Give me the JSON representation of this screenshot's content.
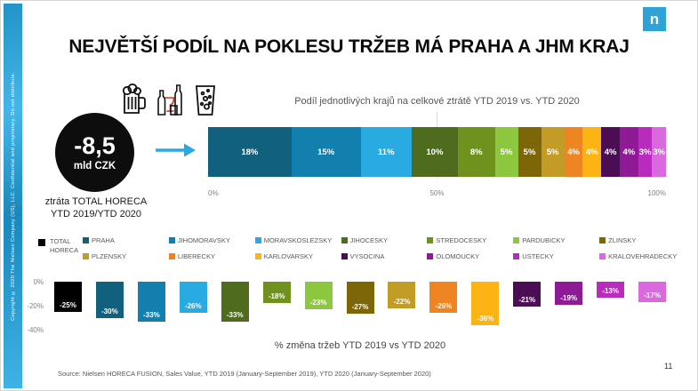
{
  "page": {
    "title": "NEJVĚTŠÍ PODÍL NA POKLESU TRŽEB MÁ PRAHA A JHM KRAJ",
    "logo_letter": "n",
    "page_number": "11",
    "copyright": "Copyright © 2020 The Nielsen Company (US), LLC. Confidential and proprietary. Do not distribute.",
    "source": "Source: Nielsen HORECA FUSION, Sales Value, YTD 2019 (January-September 2019), YTD 2020 (January-September 2020)"
  },
  "kpi": {
    "value": "-8,5",
    "unit": "mld CZK",
    "caption_line1": "ztráta TOTAL HORECA",
    "caption_line2": "YTD 2019/YTD 2020",
    "icons": [
      "beer-mug-icon",
      "wine-bottle-glass-icon",
      "sparkling-drink-icon"
    ]
  },
  "colors": {
    "accent": "#29abe2",
    "total": "#000000",
    "praha": "#11607d",
    "jihomoravsky": "#1180ae",
    "moravskoslezsky": "#29abe2",
    "jihocesky": "#4e6b1e",
    "stredocesky": "#6f921e",
    "pardubicky": "#8dc63f",
    "zlinsky": "#7c6608",
    "plzensky": "#c39b27",
    "liberecky": "#ef8522",
    "karlovarsky": "#fbb414",
    "vysocina": "#4b0e55",
    "olomoucky": "#8e1a96",
    "ustecky": "#b92bbd",
    "kralovehradecky": "#da68de"
  },
  "chart_data": [
    {
      "type": "bar",
      "subtype": "horizontal-stacked-100",
      "title": "Podíl jednotlivých krajů na celkové ztrátě YTD 2019 vs. YTD 2020",
      "axis_ticks": [
        "0%",
        "50%",
        "100%"
      ],
      "xlim": [
        0,
        100
      ],
      "grid": "vertical-50-only",
      "segments": [
        {
          "name": "PRAHA",
          "value": 18,
          "label": "18%",
          "color": "#11607d"
        },
        {
          "name": "JIHOMORAVSKY",
          "value": 15,
          "label": "15%",
          "color": "#1180ae"
        },
        {
          "name": "MORAVSKOSLEZSKY",
          "value": 11,
          "label": "11%",
          "color": "#29abe2"
        },
        {
          "name": "JIHOCESKY",
          "value": 10,
          "label": "10%",
          "color": "#4e6b1e"
        },
        {
          "name": "STREDOCESKY",
          "value": 8,
          "label": "8%",
          "color": "#6f921e"
        },
        {
          "name": "PARDUBICKY",
          "value": 5,
          "label": "5%",
          "color": "#8dc63f"
        },
        {
          "name": "ZLINSKY",
          "value": 5,
          "label": "5%",
          "color": "#7c6608"
        },
        {
          "name": "PLZENSKY",
          "value": 5,
          "label": "5%",
          "color": "#c39b27"
        },
        {
          "name": "LIBERECKY",
          "value": 4,
          "label": "4%",
          "color": "#ef8522"
        },
        {
          "name": "KARLOVARSKY",
          "value": 4,
          "label": "4%",
          "color": "#fbb414"
        },
        {
          "name": "VYSOCINA",
          "value": 4,
          "label": "4%",
          "color": "#4b0e55"
        },
        {
          "name": "OLOMOUCKY",
          "value": 4,
          "label": "4%",
          "color": "#8e1a96"
        },
        {
          "name": "USTECKY",
          "value": 3,
          "label": "3%",
          "color": "#b92bbd"
        },
        {
          "name": "KRALOVEHRADECKY",
          "value": 3,
          "label": "3%",
          "color": "#da68de"
        }
      ]
    },
    {
      "type": "bar",
      "subtype": "vertical-negative",
      "title": "% změna tržeb YTD 2019 vs YTD 2020",
      "y_ticks": [
        "0%",
        "-20%",
        "-40%"
      ],
      "ylim": [
        -40,
        0
      ],
      "grid": false,
      "bars": [
        {
          "name": "TOTAL HORECA",
          "value": -25,
          "label": "-25%",
          "color": "#000000"
        },
        {
          "name": "PRAHA",
          "value": -30,
          "label": "-30%",
          "color": "#11607d"
        },
        {
          "name": "JIHOMORAVSKY",
          "value": -33,
          "label": "-33%",
          "color": "#1180ae"
        },
        {
          "name": "MORAVSKOSLEZSKY",
          "value": -26,
          "label": "-26%",
          "color": "#29abe2"
        },
        {
          "name": "JIHOCESKY",
          "value": -33,
          "label": "-33%",
          "color": "#4e6b1e"
        },
        {
          "name": "STREDOCESKY",
          "value": -18,
          "label": "-18%",
          "color": "#6f921e"
        },
        {
          "name": "PARDUBICKY",
          "value": -23,
          "label": "-23%",
          "color": "#8dc63f"
        },
        {
          "name": "ZLINSKY",
          "value": -27,
          "label": "-27%",
          "color": "#7c6608"
        },
        {
          "name": "PLZENSKY",
          "value": -22,
          "label": "-22%",
          "color": "#c39b27"
        },
        {
          "name": "LIBERECKY",
          "value": -26,
          "label": "-26%",
          "color": "#ef8522"
        },
        {
          "name": "KARLOVARSKY",
          "value": -36,
          "label": "-36%",
          "color": "#fbb414"
        },
        {
          "name": "VYSOCINA",
          "value": -21,
          "label": "-21%",
          "color": "#4b0e55"
        },
        {
          "name": "OLOMOUCKY",
          "value": -19,
          "label": "-19%",
          "color": "#8e1a96"
        },
        {
          "name": "USTECKY",
          "value": -13,
          "label": "-13%",
          "color": "#b92bbd"
        },
        {
          "name": "KRALOVEHRADECKY",
          "value": -17,
          "label": "-17%",
          "color": "#da68de"
        }
      ]
    }
  ],
  "legend": {
    "total": {
      "line1": "TOTAL",
      "line2": "HORECA",
      "color": "#000000"
    },
    "row1": [
      {
        "label": "PRAHA",
        "color": "#11607d"
      },
      {
        "label": "JIHOMORAVSKY",
        "color": "#1180ae"
      },
      {
        "label": "MORAVSKOSLEZSKY",
        "color": "#29abe2"
      },
      {
        "label": "JIHOCESKY",
        "color": "#4e6b1e"
      },
      {
        "label": "STREDOCESKY",
        "color": "#6f921e"
      },
      {
        "label": "PARDUBICKY",
        "color": "#8dc63f"
      },
      {
        "label": "ZLINSKY",
        "color": "#7c6608"
      }
    ],
    "row2": [
      {
        "label": "PLZENSKY",
        "color": "#c39b27"
      },
      {
        "label": "LIBERECKY",
        "color": "#ef8522"
      },
      {
        "label": "KARLOVARSKY",
        "color": "#fbb414"
      },
      {
        "label": "VYSOCINA",
        "color": "#4b0e55"
      },
      {
        "label": "OLOMOUCKY",
        "color": "#8e1a96"
      },
      {
        "label": "USTECKY",
        "color": "#b92bbd"
      },
      {
        "label": "KRALOVEHRADECKY",
        "color": "#da68de"
      }
    ]
  }
}
